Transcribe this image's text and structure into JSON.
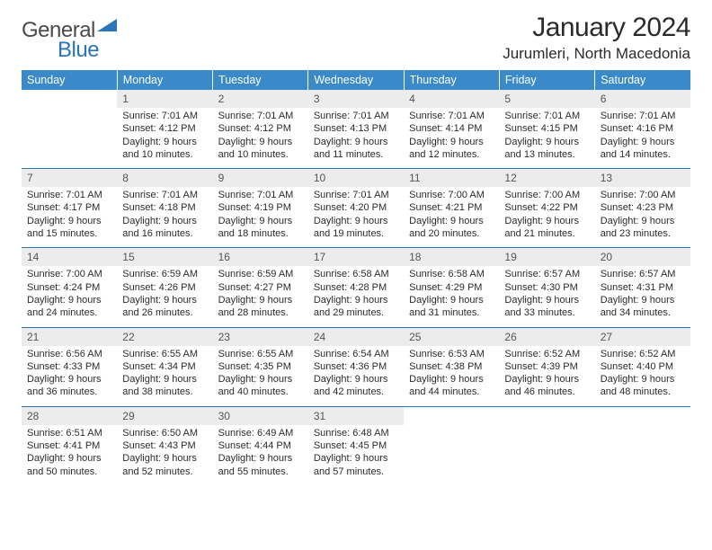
{
  "logo": {
    "word1": "General",
    "word2": "Blue"
  },
  "title": "January 2024",
  "location": "Jurumleri, North Macedonia",
  "weekdays": [
    "Sunday",
    "Monday",
    "Tuesday",
    "Wednesday",
    "Thursday",
    "Friday",
    "Saturday"
  ],
  "colors": {
    "header_bg": "#3a8ac9",
    "header_text": "#ffffff",
    "daynum_bg": "#ececec",
    "rule": "#2a74b8",
    "logo_blue": "#2a74b8",
    "body_text": "#2b2b2b"
  },
  "typography": {
    "title_fontsize": 30,
    "location_fontsize": 17,
    "header_fontsize": 12.5,
    "daynum_fontsize": 12,
    "body_fontsize": 11
  },
  "weeks": [
    [
      {
        "n": "",
        "text": ""
      },
      {
        "n": "1",
        "text": "Sunrise: 7:01 AM\nSunset: 4:12 PM\nDaylight: 9 hours and 10 minutes."
      },
      {
        "n": "2",
        "text": "Sunrise: 7:01 AM\nSunset: 4:12 PM\nDaylight: 9 hours and 10 minutes."
      },
      {
        "n": "3",
        "text": "Sunrise: 7:01 AM\nSunset: 4:13 PM\nDaylight: 9 hours and 11 minutes."
      },
      {
        "n": "4",
        "text": "Sunrise: 7:01 AM\nSunset: 4:14 PM\nDaylight: 9 hours and 12 minutes."
      },
      {
        "n": "5",
        "text": "Sunrise: 7:01 AM\nSunset: 4:15 PM\nDaylight: 9 hours and 13 minutes."
      },
      {
        "n": "6",
        "text": "Sunrise: 7:01 AM\nSunset: 4:16 PM\nDaylight: 9 hours and 14 minutes."
      }
    ],
    [
      {
        "n": "7",
        "text": "Sunrise: 7:01 AM\nSunset: 4:17 PM\nDaylight: 9 hours and 15 minutes."
      },
      {
        "n": "8",
        "text": "Sunrise: 7:01 AM\nSunset: 4:18 PM\nDaylight: 9 hours and 16 minutes."
      },
      {
        "n": "9",
        "text": "Sunrise: 7:01 AM\nSunset: 4:19 PM\nDaylight: 9 hours and 18 minutes."
      },
      {
        "n": "10",
        "text": "Sunrise: 7:01 AM\nSunset: 4:20 PM\nDaylight: 9 hours and 19 minutes."
      },
      {
        "n": "11",
        "text": "Sunrise: 7:00 AM\nSunset: 4:21 PM\nDaylight: 9 hours and 20 minutes."
      },
      {
        "n": "12",
        "text": "Sunrise: 7:00 AM\nSunset: 4:22 PM\nDaylight: 9 hours and 21 minutes."
      },
      {
        "n": "13",
        "text": "Sunrise: 7:00 AM\nSunset: 4:23 PM\nDaylight: 9 hours and 23 minutes."
      }
    ],
    [
      {
        "n": "14",
        "text": "Sunrise: 7:00 AM\nSunset: 4:24 PM\nDaylight: 9 hours and 24 minutes."
      },
      {
        "n": "15",
        "text": "Sunrise: 6:59 AM\nSunset: 4:26 PM\nDaylight: 9 hours and 26 minutes."
      },
      {
        "n": "16",
        "text": "Sunrise: 6:59 AM\nSunset: 4:27 PM\nDaylight: 9 hours and 28 minutes."
      },
      {
        "n": "17",
        "text": "Sunrise: 6:58 AM\nSunset: 4:28 PM\nDaylight: 9 hours and 29 minutes."
      },
      {
        "n": "18",
        "text": "Sunrise: 6:58 AM\nSunset: 4:29 PM\nDaylight: 9 hours and 31 minutes."
      },
      {
        "n": "19",
        "text": "Sunrise: 6:57 AM\nSunset: 4:30 PM\nDaylight: 9 hours and 33 minutes."
      },
      {
        "n": "20",
        "text": "Sunrise: 6:57 AM\nSunset: 4:31 PM\nDaylight: 9 hours and 34 minutes."
      }
    ],
    [
      {
        "n": "21",
        "text": "Sunrise: 6:56 AM\nSunset: 4:33 PM\nDaylight: 9 hours and 36 minutes."
      },
      {
        "n": "22",
        "text": "Sunrise: 6:55 AM\nSunset: 4:34 PM\nDaylight: 9 hours and 38 minutes."
      },
      {
        "n": "23",
        "text": "Sunrise: 6:55 AM\nSunset: 4:35 PM\nDaylight: 9 hours and 40 minutes."
      },
      {
        "n": "24",
        "text": "Sunrise: 6:54 AM\nSunset: 4:36 PM\nDaylight: 9 hours and 42 minutes."
      },
      {
        "n": "25",
        "text": "Sunrise: 6:53 AM\nSunset: 4:38 PM\nDaylight: 9 hours and 44 minutes."
      },
      {
        "n": "26",
        "text": "Sunrise: 6:52 AM\nSunset: 4:39 PM\nDaylight: 9 hours and 46 minutes."
      },
      {
        "n": "27",
        "text": "Sunrise: 6:52 AM\nSunset: 4:40 PM\nDaylight: 9 hours and 48 minutes."
      }
    ],
    [
      {
        "n": "28",
        "text": "Sunrise: 6:51 AM\nSunset: 4:41 PM\nDaylight: 9 hours and 50 minutes."
      },
      {
        "n": "29",
        "text": "Sunrise: 6:50 AM\nSunset: 4:43 PM\nDaylight: 9 hours and 52 minutes."
      },
      {
        "n": "30",
        "text": "Sunrise: 6:49 AM\nSunset: 4:44 PM\nDaylight: 9 hours and 55 minutes."
      },
      {
        "n": "31",
        "text": "Sunrise: 6:48 AM\nSunset: 4:45 PM\nDaylight: 9 hours and 57 minutes."
      },
      {
        "n": "",
        "text": ""
      },
      {
        "n": "",
        "text": ""
      },
      {
        "n": "",
        "text": ""
      }
    ]
  ]
}
